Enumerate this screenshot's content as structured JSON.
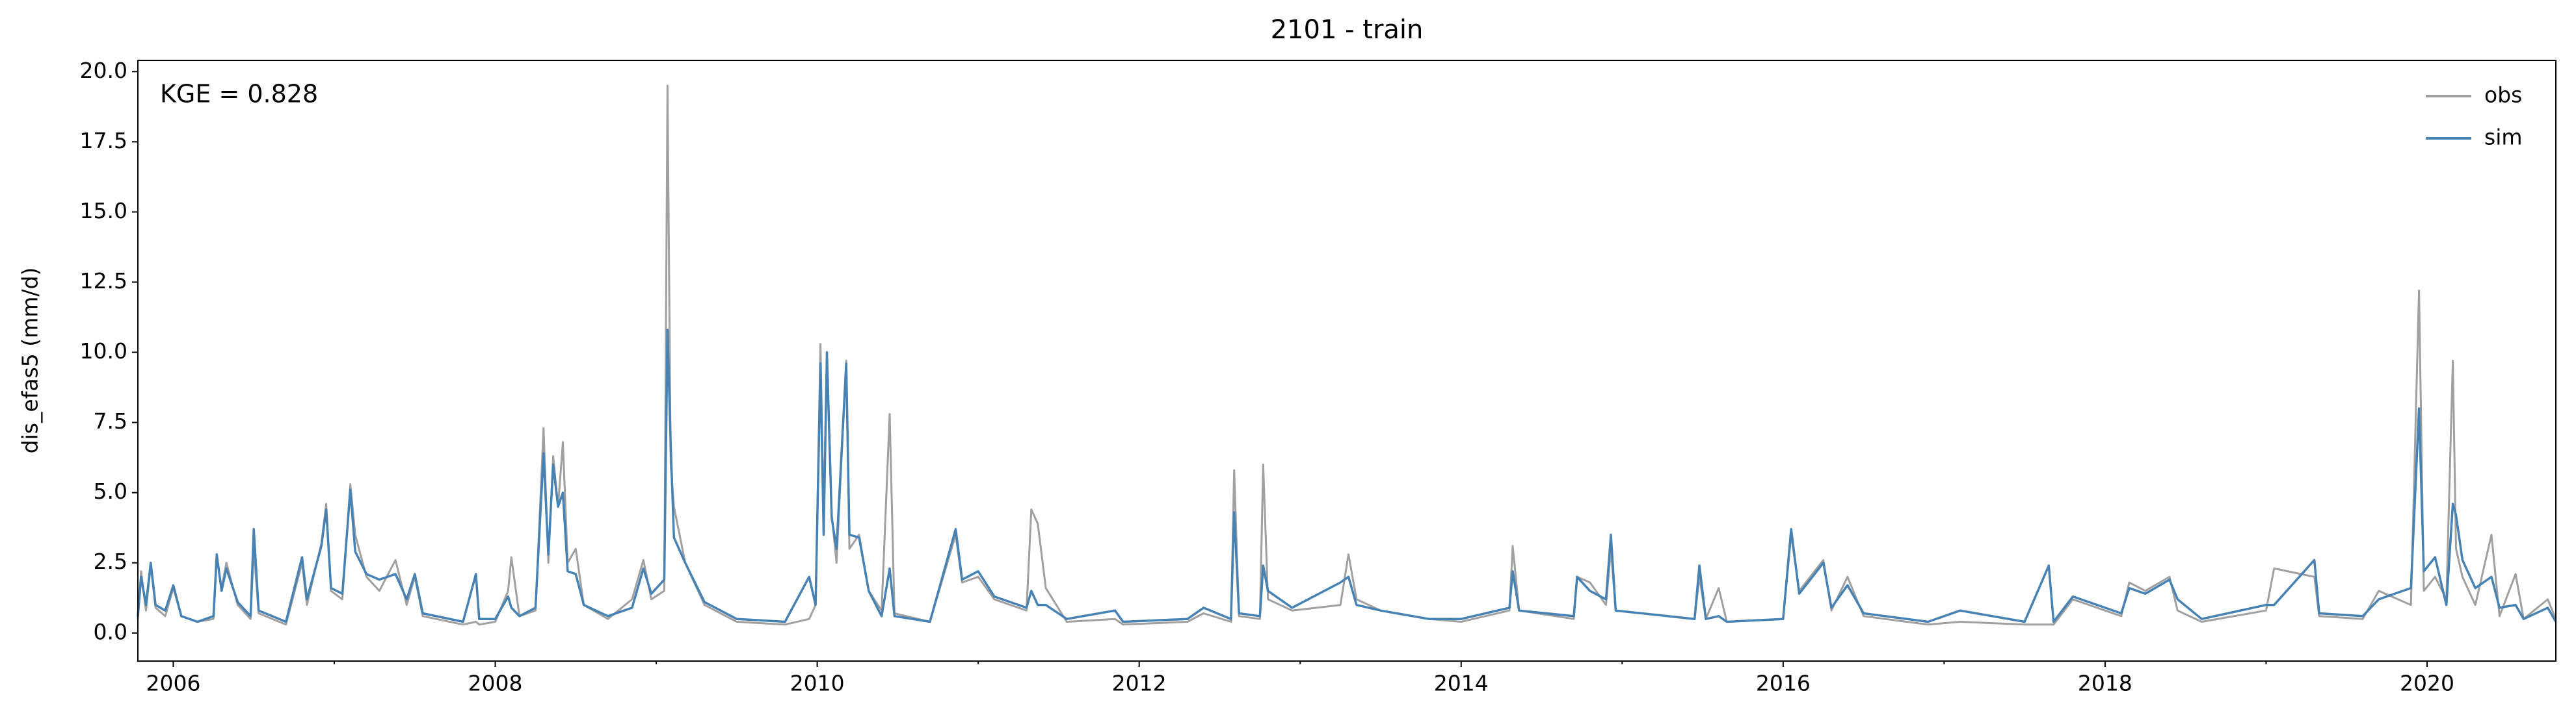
{
  "chart_data": {
    "type": "line",
    "title": "2101 - train",
    "ylabel": "dis_efas5 (mm/d)",
    "annotation": "KGE = 0.828",
    "x": [
      2005.78,
      2005.8,
      2005.83,
      2005.86,
      2005.89,
      2005.95,
      2006.0,
      2006.05,
      2006.15,
      2006.25,
      2006.27,
      2006.3,
      2006.33,
      2006.4,
      2006.48,
      2006.5,
      2006.53,
      2006.7,
      2006.8,
      2006.83,
      2006.92,
      2006.95,
      2006.98,
      2007.05,
      2007.1,
      2007.13,
      2007.2,
      2007.28,
      2007.38,
      2007.45,
      2007.5,
      2007.55,
      2007.8,
      2007.88,
      2007.9,
      2008.0,
      2008.08,
      2008.1,
      2008.15,
      2008.25,
      2008.3,
      2008.33,
      2008.36,
      2008.39,
      2008.42,
      2008.45,
      2008.5,
      2008.55,
      2008.7,
      2008.85,
      2008.92,
      2008.97,
      2009.05,
      2009.07,
      2009.09,
      2009.11,
      2009.18,
      2009.3,
      2009.5,
      2009.8,
      2009.95,
      2009.99,
      2010.02,
      2010.04,
      2010.06,
      2010.09,
      2010.12,
      2010.18,
      2010.2,
      2010.26,
      2010.32,
      2010.4,
      2010.45,
      2010.48,
      2010.7,
      2010.86,
      2010.9,
      2011.0,
      2011.1,
      2011.3,
      2011.33,
      2011.37,
      2011.42,
      2011.55,
      2011.85,
      2011.9,
      2012.3,
      2012.4,
      2012.57,
      2012.59,
      2012.62,
      2012.75,
      2012.77,
      2012.8,
      2012.95,
      2013.25,
      2013.3,
      2013.35,
      2013.5,
      2013.8,
      2014.0,
      2014.3,
      2014.32,
      2014.36,
      2014.7,
      2014.72,
      2014.8,
      2014.9,
      2014.93,
      2014.96,
      2015.45,
      2015.48,
      2015.52,
      2015.6,
      2015.65,
      2016.0,
      2016.05,
      2016.1,
      2016.25,
      2016.3,
      2016.4,
      2016.5,
      2016.9,
      2017.1,
      2017.5,
      2017.65,
      2017.68,
      2017.8,
      2018.1,
      2018.15,
      2018.25,
      2018.4,
      2018.45,
      2018.6,
      2019.0,
      2019.05,
      2019.3,
      2019.33,
      2019.6,
      2019.7,
      2019.9,
      2019.95,
      2019.98,
      2020.05,
      2020.12,
      2020.16,
      2020.18,
      2020.22,
      2020.3,
      2020.4,
      2020.45,
      2020.55,
      2020.6,
      2020.75,
      2020.8
    ],
    "series": [
      {
        "name": "obs",
        "color": "#a0a0a0",
        "values": [
          0.5,
          2.2,
          0.8,
          2.4,
          0.9,
          0.6,
          1.6,
          0.6,
          0.4,
          0.5,
          2.7,
          1.6,
          2.5,
          1.0,
          0.5,
          3.0,
          0.7,
          0.3,
          2.5,
          1.0,
          3.2,
          4.6,
          1.5,
          1.2,
          5.3,
          3.5,
          2.0,
          1.5,
          2.6,
          1.0,
          2.0,
          0.6,
          0.3,
          0.4,
          0.3,
          0.4,
          1.5,
          2.7,
          0.6,
          0.8,
          7.3,
          2.5,
          6.3,
          4.5,
          6.8,
          2.5,
          3.0,
          1.0,
          0.5,
          1.2,
          2.6,
          1.2,
          1.5,
          19.5,
          6.0,
          4.5,
          2.5,
          1.0,
          0.4,
          0.3,
          0.5,
          1.0,
          10.3,
          4.0,
          9.8,
          4.2,
          2.5,
          9.7,
          3.0,
          3.5,
          1.5,
          0.8,
          7.8,
          0.7,
          0.4,
          3.5,
          1.8,
          2.0,
          1.2,
          0.8,
          4.4,
          3.9,
          1.6,
          0.4,
          0.5,
          0.3,
          0.4,
          0.7,
          0.4,
          5.8,
          0.6,
          0.5,
          6.0,
          1.2,
          0.8,
          1.0,
          2.8,
          1.2,
          0.8,
          0.5,
          0.4,
          0.8,
          3.1,
          0.8,
          0.5,
          2.0,
          1.8,
          1.0,
          3.0,
          0.8,
          0.5,
          2.0,
          0.5,
          1.6,
          0.4,
          0.5,
          3.5,
          1.5,
          2.6,
          0.8,
          2.0,
          0.6,
          0.3,
          0.4,
          0.3,
          0.3,
          0.3,
          1.2,
          0.6,
          1.8,
          1.5,
          2.0,
          0.8,
          0.4,
          0.8,
          2.3,
          2.0,
          0.6,
          0.5,
          1.5,
          1.0,
          12.2,
          1.5,
          2.0,
          1.2,
          9.7,
          3.0,
          2.0,
          1.0,
          3.5,
          0.6,
          2.1,
          0.5,
          1.2,
          0.5
        ]
      },
      {
        "name": "sim",
        "color": "#4682b4",
        "values": [
          0.6,
          2.0,
          1.0,
          2.5,
          1.0,
          0.8,
          1.7,
          0.6,
          0.4,
          0.6,
          2.8,
          1.5,
          2.3,
          1.1,
          0.6,
          3.7,
          0.8,
          0.4,
          2.7,
          1.2,
          3.1,
          4.4,
          1.6,
          1.4,
          5.1,
          2.9,
          2.1,
          1.9,
          2.1,
          1.2,
          2.1,
          0.7,
          0.4,
          2.1,
          0.5,
          0.5,
          1.3,
          0.9,
          0.6,
          0.9,
          6.4,
          2.8,
          6.0,
          4.5,
          5.0,
          2.2,
          2.1,
          1.0,
          0.6,
          0.9,
          2.3,
          1.4,
          1.9,
          10.8,
          6.7,
          3.4,
          2.5,
          1.1,
          0.5,
          0.4,
          2.0,
          1.0,
          9.6,
          3.5,
          10.0,
          4.1,
          3.0,
          9.6,
          3.5,
          3.4,
          1.5,
          0.6,
          2.3,
          0.6,
          0.4,
          3.7,
          1.9,
          2.2,
          1.3,
          0.9,
          1.5,
          1.0,
          1.0,
          0.5,
          0.8,
          0.4,
          0.5,
          0.9,
          0.5,
          4.3,
          0.7,
          0.6,
          2.4,
          1.5,
          0.9,
          1.8,
          2.0,
          1.0,
          0.8,
          0.5,
          0.5,
          0.9,
          2.2,
          0.8,
          0.6,
          2.0,
          1.5,
          1.2,
          3.5,
          0.8,
          0.5,
          2.4,
          0.5,
          0.6,
          0.4,
          0.5,
          3.7,
          1.4,
          2.5,
          0.9,
          1.7,
          0.7,
          0.4,
          0.8,
          0.4,
          2.4,
          0.4,
          1.3,
          0.7,
          1.6,
          1.4,
          1.9,
          1.2,
          0.5,
          1.0,
          1.0,
          2.6,
          0.7,
          0.6,
          1.2,
          1.6,
          8.0,
          2.2,
          2.7,
          1.0,
          4.6,
          4.2,
          2.6,
          1.6,
          2.0,
          0.9,
          1.0,
          0.5,
          0.9,
          0.4
        ]
      }
    ],
    "xlim": [
      2005.78,
      2020.8
    ],
    "xticks": [
      2006,
      2008,
      2010,
      2012,
      2014,
      2016,
      2018,
      2020
    ],
    "xminorticks": [
      2007,
      2009,
      2011,
      2013,
      2015,
      2017,
      2019
    ],
    "ylim": [
      -1,
      20.4
    ],
    "yticks": [
      {
        "value": 0,
        "label": "0.0"
      },
      2.5,
      {
        "value": 5,
        "label": "5.0"
      },
      7.5,
      {
        "value": 10,
        "label": "10.0"
      },
      12.5,
      {
        "value": 15,
        "label": "15.0"
      },
      17.5,
      {
        "value": 20,
        "label": "20.0"
      }
    ],
    "grid": false,
    "legend": "upper right"
  }
}
